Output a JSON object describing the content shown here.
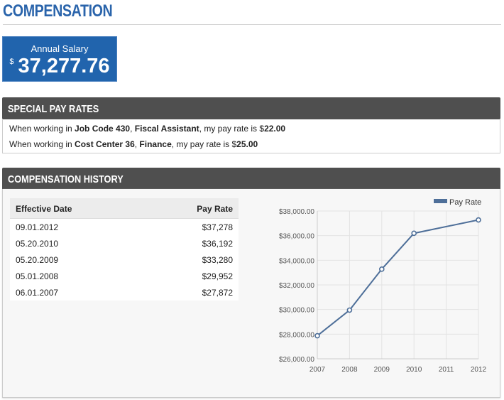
{
  "page": {
    "title": "COMPENSATION"
  },
  "salary": {
    "label": "Annual Salary",
    "currency": "$",
    "amount": "37,277.76",
    "color": "#2164ad"
  },
  "special_pay": {
    "title": "SPECIAL PAY RATES",
    "items": [
      {
        "p1": "When working in ",
        "b1": "Job Code 430",
        ",": ", ",
        "b2": "Fiscal Assistant",
        "p2": ", my pay rate is $",
        "b3": "22.00"
      },
      {
        "p1": "When working in ",
        "b1": "Cost Center 36",
        ",": ", ",
        "b2": "Finance",
        "p2": ", my pay rate is $",
        "b3": "25.00"
      }
    ]
  },
  "history": {
    "title": "COMPENSATION HISTORY",
    "columns": [
      "Effective Date",
      "Pay Rate"
    ],
    "rows": [
      [
        "09.01.2012",
        "$37,278"
      ],
      [
        "05.20.2010",
        "$36,192"
      ],
      [
        "05.20.2009",
        "$33,280"
      ],
      [
        "05.01.2008",
        "$29,952"
      ],
      [
        "06.01.2007",
        "$27,872"
      ]
    ]
  },
  "chart_data": {
    "type": "line",
    "x": [
      2007,
      2008,
      2009,
      2010,
      2012
    ],
    "series": [
      {
        "name": "Pay Rate",
        "values": [
          27872,
          29952,
          33280,
          36192,
          37278
        ],
        "color": "#4e6f99"
      }
    ],
    "x_ticks": [
      "2007",
      "2008",
      "2009",
      "2010",
      "2011",
      "2012"
    ],
    "y_ticks": [
      "$26,000.00",
      "$28,000.00",
      "$30,000.00",
      "$32,000.00",
      "$34,000.00",
      "$36,000.00",
      "$38,000.00"
    ],
    "xlim": [
      2007,
      2012
    ],
    "ylim": [
      26000,
      38000
    ],
    "grid": true,
    "legend": "top-right"
  }
}
